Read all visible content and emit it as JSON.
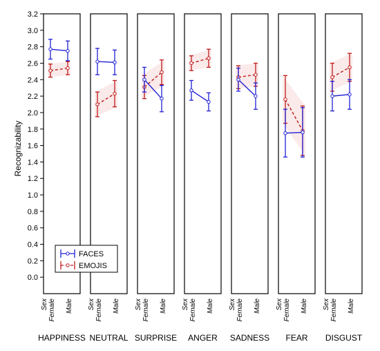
{
  "chart_data": {
    "type": "line",
    "ylabel": "Recognizability",
    "ylim": [
      -0.2,
      3.2
    ],
    "yticks": [
      "0.0",
      "0.2",
      "0.4",
      "0.6",
      "0.8",
      "1.0",
      "1.2",
      "1.4",
      "1.6",
      "1.8",
      "2.0",
      "2.2",
      "2.4",
      "2.6",
      "2.8",
      "3.0",
      "3.2"
    ],
    "factor_label": "Sex",
    "categories": [
      "Female",
      "Male"
    ],
    "panels": [
      "HAPPINESS",
      "NEUTRAL",
      "SURPRISE",
      "ANGER",
      "SADNESS",
      "FEAR",
      "DISGUST"
    ],
    "legend_position": "bottom-left",
    "series": [
      {
        "name": "FACES",
        "color": "#1f1fd6",
        "line_style": "solid",
        "values": [
          [
            2.77,
            2.75
          ],
          [
            2.62,
            2.61
          ],
          [
            2.4,
            2.17
          ],
          [
            2.27,
            2.13
          ],
          [
            2.4,
            2.2
          ],
          [
            1.75,
            1.76
          ],
          [
            2.2,
            2.22
          ]
        ],
        "error": [
          [
            0.12,
            0.12
          ],
          [
            0.16,
            0.15
          ],
          [
            0.15,
            0.16
          ],
          [
            0.12,
            0.11
          ],
          [
            0.14,
            0.16
          ],
          [
            0.29,
            0.3
          ],
          [
            0.18,
            0.18
          ]
        ]
      },
      {
        "name": "EMOJIS",
        "color": "#c01818",
        "line_style": "dashed",
        "values": [
          [
            2.51,
            2.54
          ],
          [
            2.1,
            2.23
          ],
          [
            2.31,
            2.49
          ],
          [
            2.6,
            2.66
          ],
          [
            2.43,
            2.46
          ],
          [
            2.16,
            1.78
          ],
          [
            2.43,
            2.55
          ]
        ],
        "error": [
          [
            0.08,
            0.08
          ],
          [
            0.15,
            0.16
          ],
          [
            0.14,
            0.15
          ],
          [
            0.09,
            0.11
          ],
          [
            0.14,
            0.14
          ],
          [
            0.29,
            0.3
          ],
          [
            0.17,
            0.17
          ]
        ]
      }
    ]
  }
}
